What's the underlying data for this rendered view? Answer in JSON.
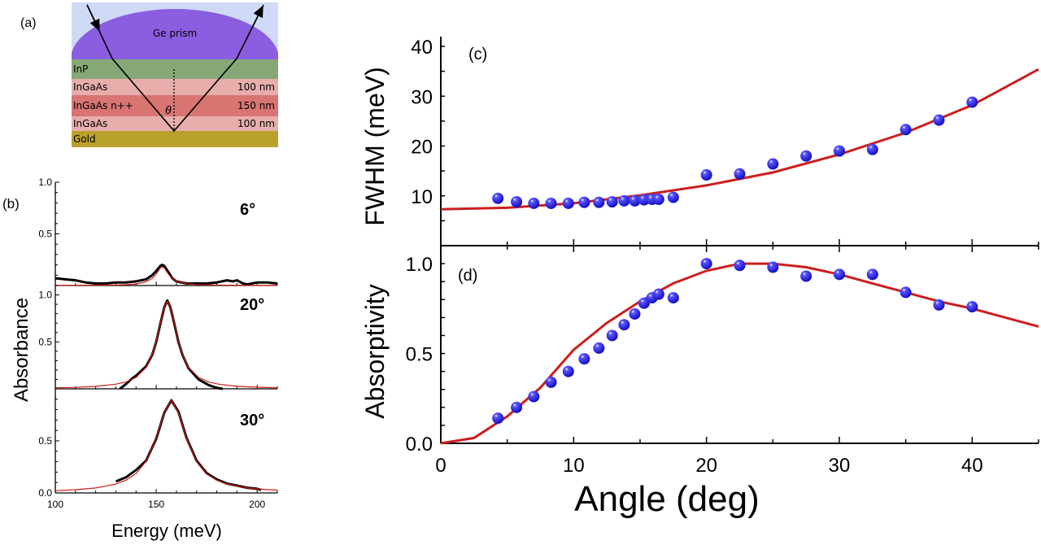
{
  "schematic": {
    "panel_label": "(a)",
    "prism_label": "Ge prism",
    "angle_symbol": "θ",
    "layers": [
      {
        "name": "InP",
        "thickness": "",
        "color": "#86a877"
      },
      {
        "name": "InGaAs",
        "thickness": "100 nm",
        "color": "#e7aeac"
      },
      {
        "name": "InGaAs n++",
        "thickness": "150 nm",
        "color": "#d87472"
      },
      {
        "name": "InGaAs",
        "thickness": "100 nm",
        "color": "#e7aeac"
      },
      {
        "name": "Gold",
        "thickness": "",
        "color": "#baa12c"
      }
    ],
    "colors": {
      "background": "#cfdaf6",
      "prism": "#8b5de0"
    }
  },
  "chart_data": [
    {
      "panel_label": "(b)",
      "type": "line",
      "xlabel": "Energy (meV)",
      "ylabel": "Absorbance",
      "xlim": [
        100,
        210
      ],
      "xticks": [
        "100",
        "150",
        "200"
      ],
      "grid": false,
      "colors": {
        "measured": "#000000",
        "fit": "#d01c1c"
      },
      "subplots": [
        {
          "annotation": "6°",
          "ylim": [
            0,
            1.0
          ],
          "yticks": [
            "0.5",
            "1.0"
          ],
          "measured": {
            "x": [
              100,
              105,
              110,
              115,
              120,
              125,
              130,
              135,
              140,
              145,
              148,
              150,
              152,
              153,
              154,
              156,
              158,
              160,
              165,
              170,
              175,
              180,
              185,
              188,
              190,
              193,
              195,
              200,
              205,
              210
            ],
            "y": [
              0.07,
              0.06,
              0.05,
              0.03,
              0.02,
              0.02,
              0.03,
              0.03,
              0.04,
              0.06,
              0.1,
              0.14,
              0.19,
              0.2,
              0.19,
              0.13,
              0.07,
              0.04,
              0.02,
              0.02,
              0.02,
              0.03,
              0.05,
              0.04,
              0.05,
              0.02,
              0.01,
              0.03,
              0.03,
              0.02
            ]
          },
          "fit": {
            "x": [
              100,
              110,
              120,
              130,
              135,
              140,
              145,
              148,
              150,
              152,
              153,
              154,
              156,
              158,
              160,
              165,
              170,
              180,
              190,
              200,
              210
            ],
            "y": [
              0.001,
              0.002,
              0.003,
              0.005,
              0.008,
              0.015,
              0.036,
              0.07,
              0.11,
              0.17,
              0.18,
              0.17,
              0.11,
              0.07,
              0.045,
              0.018,
              0.009,
              0.004,
              0.002,
              0.001,
              0.001
            ]
          }
        },
        {
          "annotation": "20°",
          "ylim": [
            0,
            1.1
          ],
          "yticks": [
            "0.5",
            "1.0"
          ],
          "measured": {
            "x": [
              132,
              135,
              138,
              140,
              145,
              148,
              150,
              152,
              154,
              155.5,
              157,
              159,
              161,
              163,
              166,
              171,
              176,
              180,
              183
            ],
            "y": [
              0.0,
              0.05,
              0.11,
              0.14,
              0.24,
              0.36,
              0.5,
              0.69,
              0.87,
              0.94,
              0.87,
              0.69,
              0.5,
              0.36,
              0.22,
              0.1,
              0.04,
              0.01,
              0.0
            ]
          },
          "fit": {
            "x": [
              100,
              110,
              120,
              130,
              135,
              140,
              145,
              148,
              150,
              152,
              154,
              155.5,
              157,
              159,
              161,
              163,
              166,
              171,
              176,
              181,
              190,
              200,
              210
            ],
            "y": [
              0.011,
              0.016,
              0.026,
              0.049,
              0.073,
              0.121,
              0.229,
              0.363,
              0.505,
              0.694,
              0.875,
              0.93,
              0.875,
              0.694,
              0.505,
              0.363,
              0.229,
              0.121,
              0.073,
              0.049,
              0.027,
              0.017,
              0.011
            ]
          }
        },
        {
          "annotation": "30°",
          "ylim": [
            0,
            1.0
          ],
          "yticks": [
            "0.0",
            "0.5"
          ],
          "measured": {
            "x": [
              130,
              135,
              140,
              145,
              150,
              154,
              157.5,
              161,
              165,
              170,
              175,
              180,
              185,
              190,
              195,
              200,
              202
            ],
            "y": [
              0.11,
              0.15,
              0.22,
              0.31,
              0.52,
              0.77,
              0.89,
              0.78,
              0.53,
              0.31,
              0.19,
              0.13,
              0.09,
              0.07,
              0.05,
              0.04,
              0.03
            ]
          },
          "fit": {
            "x": [
              100,
              110,
              120,
              130,
              135,
              140,
              145,
              150,
              154,
              157.5,
              161,
              165,
              170,
              175,
              180,
              185,
              195,
              205,
              210
            ],
            "y": [
              0.021,
              0.031,
              0.048,
              0.086,
              0.123,
              0.186,
              0.304,
              0.525,
              0.773,
              0.89,
              0.773,
              0.525,
              0.304,
              0.186,
              0.123,
              0.086,
              0.048,
              0.031,
              0.027
            ]
          }
        }
      ]
    },
    {
      "panel_label": "(c)",
      "type": "scatter",
      "xlabel": "Angle (deg)",
      "ylabel": "FWHM (meV)",
      "xlim": [
        0,
        45
      ],
      "ylim": [
        0,
        40
      ],
      "yticks": [
        "10",
        "20",
        "30",
        "40"
      ],
      "grid": false,
      "colors": {
        "points": "#2a22f0",
        "fit": "#cc1f1f"
      },
      "points": {
        "x": [
          4.3,
          5.7,
          7,
          8.3,
          9.6,
          10.8,
          11.9,
          12.9,
          13.8,
          14.6,
          15.3,
          15.9,
          16.4,
          17.5,
          20,
          22.5,
          25,
          27.5,
          30,
          32.5,
          35,
          37.5,
          40
        ],
        "y": [
          9.5,
          8.8,
          8.5,
          8.5,
          8.5,
          8.7,
          8.7,
          8.8,
          9.0,
          9.0,
          9.2,
          9.3,
          9.3,
          9.7,
          14.2,
          14.4,
          16.4,
          18.0,
          19.0,
          19.3,
          23.3,
          25.2,
          28.8
        ]
      },
      "fit": {
        "x": [
          0,
          5,
          10,
          15,
          20,
          25,
          30,
          35,
          40,
          45
        ],
        "y": [
          7.3,
          7.6,
          8.5,
          10.1,
          12.1,
          14.7,
          18.3,
          22.7,
          28.2,
          35.4
        ]
      }
    },
    {
      "panel_label": "(d)",
      "type": "scatter",
      "xlabel": "Angle (deg)",
      "ylabel": "Absorptivity",
      "xlim": [
        0,
        45
      ],
      "ylim": [
        0,
        1.1
      ],
      "xticks": [
        "0",
        "10",
        "20",
        "30",
        "40"
      ],
      "yticks": [
        "0.0",
        "0.5",
        "1.0"
      ],
      "grid": false,
      "colors": {
        "points": "#2a22f0",
        "fit": "#cc1f1f"
      },
      "points": {
        "x": [
          4.3,
          5.7,
          7,
          8.3,
          9.6,
          10.8,
          11.9,
          12.9,
          13.8,
          14.6,
          15.3,
          15.9,
          16.4,
          17.5,
          20,
          22.5,
          25,
          27.5,
          30,
          32.5,
          35,
          37.5,
          40
        ],
        "y": [
          0.14,
          0.2,
          0.26,
          0.34,
          0.4,
          0.47,
          0.53,
          0.6,
          0.66,
          0.72,
          0.78,
          0.81,
          0.83,
          0.81,
          1.0,
          0.99,
          0.98,
          0.93,
          0.94,
          0.94,
          0.84,
          0.77,
          0.76
        ]
      },
      "fit": {
        "x": [
          0,
          2.5,
          5,
          7.5,
          10,
          12.5,
          15,
          17.5,
          20,
          22.5,
          25,
          27.5,
          30,
          32.5,
          35,
          37.5,
          40,
          42.5,
          45
        ],
        "y": [
          0,
          0.03,
          0.15,
          0.31,
          0.52,
          0.67,
          0.79,
          0.89,
          0.96,
          1.0,
          1.0,
          0.98,
          0.94,
          0.89,
          0.84,
          0.79,
          0.75,
          0.7,
          0.65
        ]
      }
    }
  ]
}
